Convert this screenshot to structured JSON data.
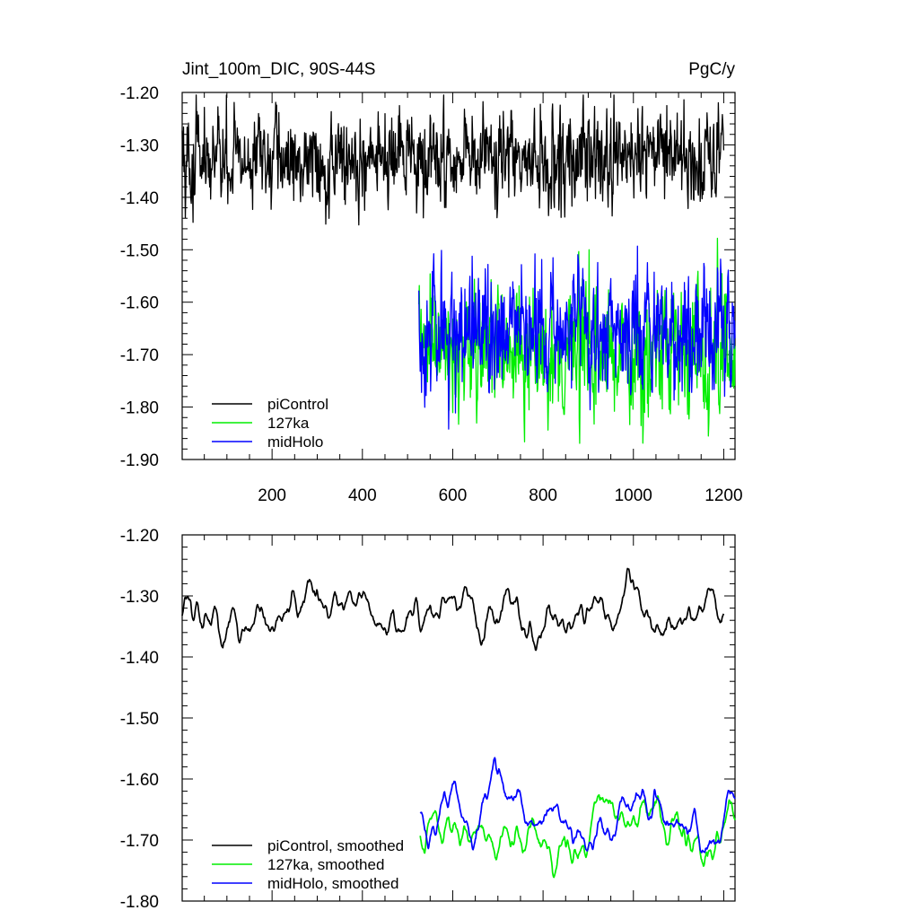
{
  "chart_data": [
    {
      "type": "line",
      "title": "Jint_100m_DIC, 90S-44S",
      "units_label": "PgC/y",
      "xlim": [
        1,
        1225
      ],
      "ylim": [
        -1.9,
        -1.2
      ],
      "x_ticks": [
        200,
        400,
        600,
        800,
        1000,
        1200
      ],
      "x_tick_labels": [
        "200",
        "400",
        "600",
        "800",
        "1000",
        "1200"
      ],
      "y_ticks": [
        -1.2,
        -1.3,
        -1.4,
        -1.5,
        -1.6,
        -1.7,
        -1.8,
        -1.9
      ],
      "y_tick_labels": [
        "-1.20",
        "-1.30",
        "-1.40",
        "-1.50",
        "-1.60",
        "-1.70",
        "-1.80",
        "-1.90"
      ],
      "legend_position": "bottom-left",
      "series": [
        {
          "name": "piControl",
          "color": "#000000",
          "x_range": [
            1,
            1200
          ],
          "mean": -1.33,
          "amplitude": 0.045,
          "style": "noisy"
        },
        {
          "name": "127ka",
          "color": "#00ee00",
          "x_range": [
            525,
            1225
          ],
          "mean": -1.69,
          "amplitude": 0.065,
          "style": "noisy"
        },
        {
          "name": "midHolo",
          "color": "#0000ff",
          "x_range": [
            525,
            1225
          ],
          "mean": -1.66,
          "amplitude": 0.06,
          "style": "noisy"
        }
      ]
    },
    {
      "type": "line",
      "title": "",
      "xlim": [
        1,
        1225
      ],
      "ylim": [
        -1.8,
        -1.2
      ],
      "x_ticks": [
        200,
        400,
        600,
        800,
        1000,
        1200
      ],
      "y_ticks": [
        -1.2,
        -1.3,
        -1.4,
        -1.5,
        -1.6,
        -1.7,
        -1.8
      ],
      "y_tick_labels": [
        "-1.20",
        "-1.30",
        "-1.40",
        "-1.50",
        "-1.60",
        "-1.70",
        "-1.80"
      ],
      "legend_position": "bottom-left",
      "series": [
        {
          "name": "piControl, smoothed",
          "color": "#000000",
          "x_range": [
            1,
            1200
          ],
          "mean": -1.335,
          "amplitude": 0.018,
          "style": "smooth"
        },
        {
          "name": "127ka, smoothed",
          "color": "#00ee00",
          "x_range": [
            528,
            1225
          ],
          "mean": -1.69,
          "amplitude": 0.02,
          "style": "smooth"
        },
        {
          "name": "midHolo, smoothed",
          "color": "#0000ff",
          "x_range": [
            528,
            1225
          ],
          "mean": -1.655,
          "amplitude": 0.018,
          "style": "smooth"
        }
      ]
    }
  ]
}
